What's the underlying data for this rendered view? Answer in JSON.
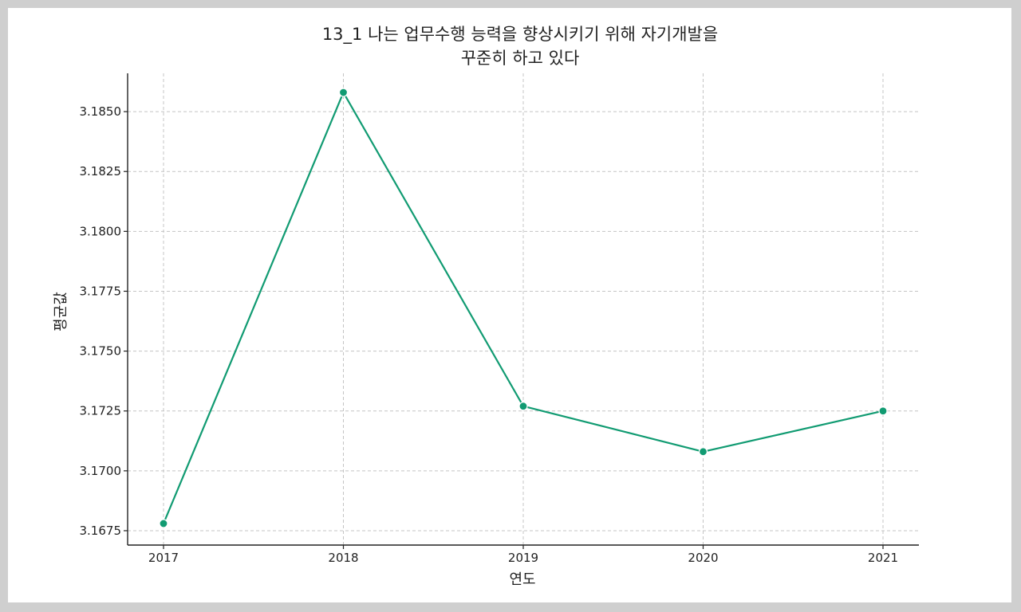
{
  "chart_data": {
    "type": "line",
    "title_lines": [
      "13_1 나는 업무수행 능력을 향상시키기 위해 자기개발을",
      "꾸준히 하고 있다"
    ],
    "xlabel": "연도",
    "ylabel": "평균값",
    "x": [
      "2017",
      "2018",
      "2019",
      "2020",
      "2021"
    ],
    "series": [
      {
        "values": [
          3.1678,
          3.1858,
          3.1727,
          3.1708,
          3.1725
        ]
      }
    ],
    "yticks": [
      3.1675,
      3.17,
      3.1725,
      3.175,
      3.1775,
      3.18,
      3.1825,
      3.185
    ],
    "ytick_labels": [
      "3.1675",
      "3.1700",
      "3.1725",
      "3.1750",
      "3.1775",
      "3.1800",
      "3.1825",
      "3.1850"
    ],
    "ylim": [
      3.1669,
      3.1866
    ],
    "grid": true,
    "line_color": "#119b72",
    "grid_color": "#c4c4c4",
    "axis_color": "#222222"
  }
}
